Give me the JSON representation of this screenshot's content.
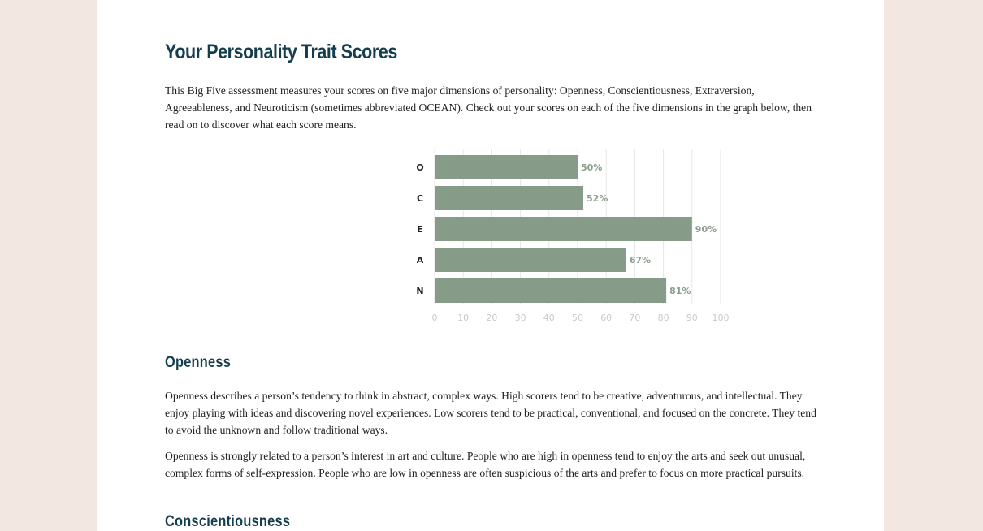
{
  "article": {
    "title": "Your Personality Trait Scores",
    "intro": "This Big Five assessment measures your scores on five major dimensions of personality: Openness, Conscientiousness, Extraversion, Agreeableness, and Neuroticism (sometimes abbreviated OCEAN). Check out your scores on each of the five dimensions in the graph below, then read on to discover what each score means.",
    "sections": [
      {
        "heading": "Openness",
        "paragraphs": [
          "Openness describes a person’s tendency to think in abstract, complex ways. High scorers tend to be creative, adventurous, and intellectual. They enjoy playing with ideas and discovering novel experiences. Low scorers tend to be practical, conventional, and focused on the concrete. They tend to avoid the unknown and follow traditional ways.",
          "Openness is strongly related to a person’s interest in art and culture. People who are high in openness tend to enjoy the arts and seek out unusual, complex forms of self-expression. People who are low in openness are often suspicious of the arts and prefer to focus on more practical pursuits."
        ]
      },
      {
        "heading": "Conscientiousness"
      }
    ]
  },
  "colors": {
    "background": "#f2e7e1",
    "heading": "#143d4d",
    "bar": "#869c89",
    "value_label": "#8aa08d",
    "tick_label": "#c9c9c9",
    "gridline": "#e6e6e6"
  },
  "chart_data": {
    "type": "bar",
    "orientation": "horizontal",
    "categories": [
      "O",
      "C",
      "E",
      "A",
      "N"
    ],
    "values": [
      50,
      52,
      90,
      67,
      81
    ],
    "value_labels": [
      "50%",
      "52%",
      "90%",
      "67%",
      "81%"
    ],
    "x_ticks": [
      "0",
      "10",
      "20",
      "30",
      "40",
      "50",
      "60",
      "70",
      "80",
      "90",
      "100"
    ],
    "xlim": [
      0,
      100
    ],
    "title": "",
    "xlabel": "",
    "ylabel": "",
    "grid": true
  }
}
